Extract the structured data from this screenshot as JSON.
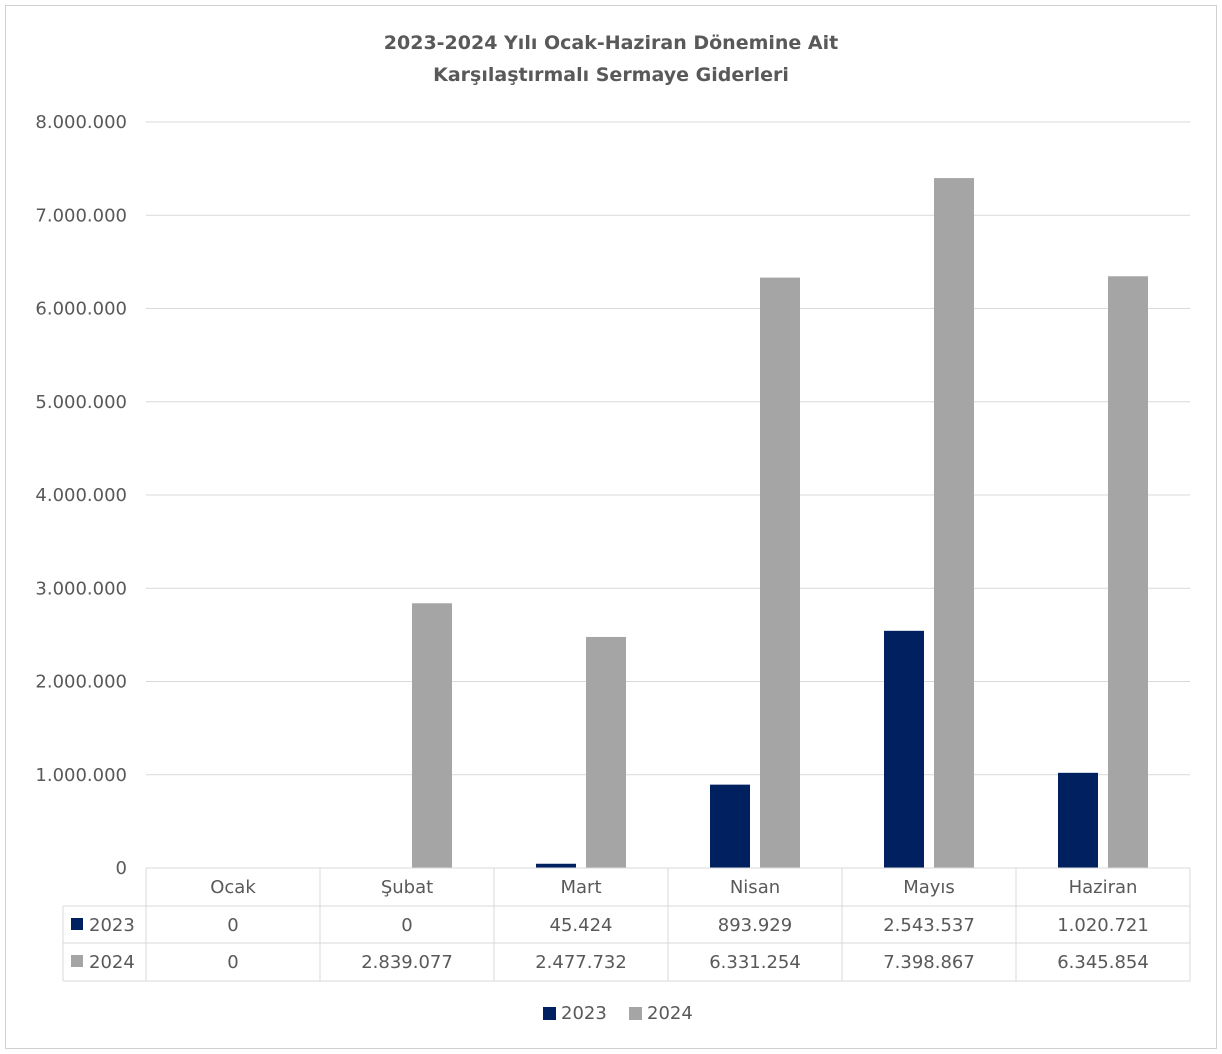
{
  "chart_data": {
    "type": "bar",
    "title": [
      "2023-2024 Yılı Ocak-Haziran Dönemine Ait",
      "Karşılaştırmalı Sermaye Giderleri"
    ],
    "categories": [
      "Ocak",
      "Şubat",
      "Mart",
      "Nisan",
      "Mayıs",
      "Haziran"
    ],
    "series": [
      {
        "name": "2023",
        "color": "#002060",
        "values": [
          0,
          0,
          45424,
          893929,
          2543537,
          1020721
        ],
        "labels": [
          "0",
          "0",
          "45.424",
          "893.929",
          "2.543.537",
          "1.020.721"
        ]
      },
      {
        "name": "2024",
        "color": "#a5a5a5",
        "values": [
          0,
          2839077,
          2477732,
          6331254,
          7398867,
          6345854
        ],
        "labels": [
          "0",
          "2.839.077",
          "2.477.732",
          "6.331.254",
          "7.398.867",
          "6.345.854"
        ]
      }
    ],
    "ylim": [
      0,
      8000000
    ],
    "yticks": [
      0,
      1000000,
      2000000,
      3000000,
      4000000,
      5000000,
      6000000,
      7000000,
      8000000
    ],
    "ytick_labels": [
      "0",
      "1.000.000",
      "2.000.000",
      "3.000.000",
      "4.000.000",
      "5.000.000",
      "6.000.000",
      "7.000.000",
      "8.000.000"
    ],
    "grid": true,
    "data_table": true,
    "legend": "bottom"
  }
}
